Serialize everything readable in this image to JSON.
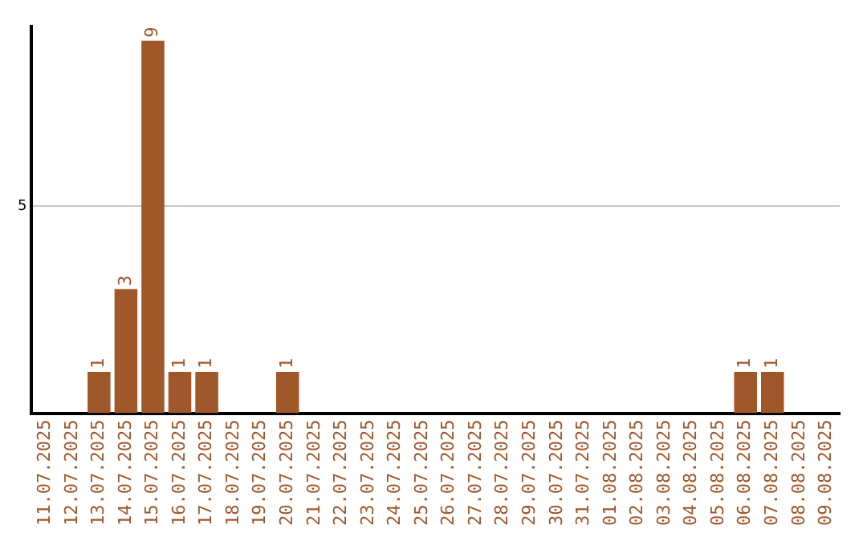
{
  "chart_data": {
    "type": "bar",
    "categories": [
      "11.07.2025",
      "12.07.2025",
      "13.07.2025",
      "14.07.2025",
      "15.07.2025",
      "16.07.2025",
      "17.07.2025",
      "18.07.2025",
      "19.07.2025",
      "20.07.2025",
      "21.07.2025",
      "22.07.2025",
      "23.07.2025",
      "24.07.2025",
      "25.07.2025",
      "26.07.2025",
      "27.07.2025",
      "28.07.2025",
      "29.07.2025",
      "30.07.2025",
      "31.07.2025",
      "01.08.2025",
      "02.08.2025",
      "03.08.2025",
      "04.08.2025",
      "05.08.2025",
      "06.08.2025",
      "07.08.2025",
      "08.08.2025",
      "09.08.2025"
    ],
    "values": [
      0,
      0,
      1,
      3,
      9,
      1,
      1,
      0,
      0,
      1,
      0,
      0,
      0,
      0,
      0,
      0,
      0,
      0,
      0,
      0,
      0,
      0,
      0,
      0,
      0,
      0,
      1,
      1,
      0,
      0
    ],
    "value_labels": [
      null,
      null,
      "1",
      "3",
      "9",
      "1",
      "1",
      null,
      null,
      "1",
      null,
      null,
      null,
      null,
      null,
      null,
      null,
      null,
      null,
      null,
      null,
      null,
      null,
      null,
      null,
      null,
      "1",
      "1",
      null,
      null
    ],
    "color": "#a0572a",
    "ylim": [
      0,
      9.35
    ],
    "yticks": [
      5
    ],
    "grid": "y",
    "legend": false
  }
}
